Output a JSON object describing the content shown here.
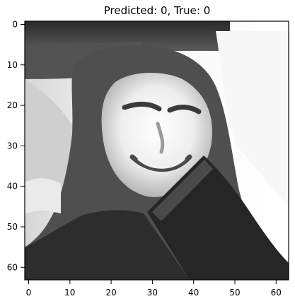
{
  "chart_data": {
    "type": "image",
    "title": "Predicted: 0, True: 0",
    "colormap": "gray",
    "image_size": [
      64,
      64
    ],
    "extent": {
      "x": [
        -0.5,
        63.5
      ],
      "y": [
        63.5,
        -0.5
      ]
    },
    "x_ticks": [
      0,
      10,
      20,
      30,
      40,
      50,
      60
    ],
    "y_ticks": [
      0,
      10,
      20,
      30,
      40,
      50,
      60
    ],
    "prediction": 0,
    "true_label": 0
  }
}
